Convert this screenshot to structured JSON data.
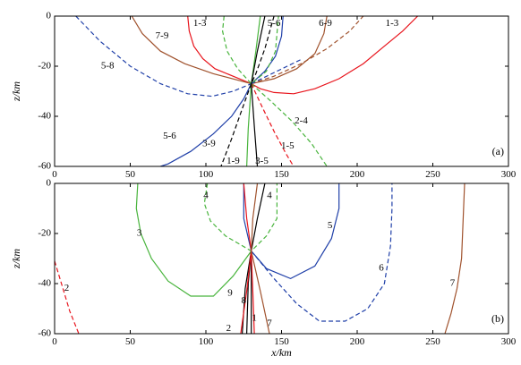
{
  "colors": {
    "black": "#000000",
    "red": "#e8141c",
    "green": "#48b43c",
    "blue": "#1f3fa8",
    "brown": "#a0522d"
  },
  "chart_data": [
    {
      "type": "line",
      "panel": "(a)",
      "xlim": [
        0,
        300
      ],
      "ylim": [
        -60,
        0
      ],
      "xticks": [
        0,
        50,
        100,
        150,
        200,
        250,
        300
      ],
      "yticks": [
        0,
        -20,
        -40,
        -60
      ],
      "xtick_labels": [
        "0",
        "50",
        "100",
        "150",
        "200",
        "250",
        "300"
      ],
      "ytick_labels": [
        "0",
        "-20",
        "-40",
        "-60"
      ],
      "ylabel": "z/km",
      "series": [
        {
          "name": "1-3",
          "color": "red",
          "dash": false,
          "label_at": [
            96,
            -3
          ],
          "points": [
            [
              88,
              0
            ],
            [
              89,
              -6
            ],
            [
              92,
              -12
            ],
            [
              98,
              -17
            ],
            [
              106,
              -21
            ],
            [
              118,
              -24
            ],
            [
              130,
              -27
            ]
          ]
        },
        {
          "name": "1-3",
          "color": "red",
          "dash": false,
          "label_at": [
            223,
            -3
          ],
          "points": [
            [
              130,
              -27
            ],
            [
              136,
              -29
            ],
            [
              145,
              -30.5
            ],
            [
              158,
              -31
            ],
            [
              172,
              -29
            ],
            [
              188,
              -25
            ],
            [
              204,
              -19
            ],
            [
              218,
              -12
            ],
            [
              230,
              -6
            ],
            [
              240,
              0
            ]
          ]
        },
        {
          "name": "5-6",
          "color": "blue",
          "dash": false,
          "label_at": [
            145,
            -3
          ],
          "points": [
            [
              151,
              0
            ],
            [
              150,
              -8
            ],
            [
              146,
              -16
            ],
            [
              139,
              -22
            ],
            [
              130,
              -27
            ]
          ]
        },
        {
          "name": "5-6",
          "color": "blue",
          "dash": false,
          "label_at": [
            76,
            -48
          ],
          "points": [
            [
              130,
              -27
            ],
            [
              125,
              -33
            ],
            [
              117,
              -40
            ],
            [
              105,
              -47
            ],
            [
              90,
              -54
            ],
            [
              75,
              -59
            ],
            [
              70,
              -60
            ]
          ]
        },
        {
          "name": "6-9",
          "color": "brown",
          "dash": false,
          "label_at": [
            179,
            -3
          ],
          "points": [
            [
              180,
              0
            ],
            [
              178,
              -7
            ],
            [
              172,
              -15
            ],
            [
              160,
              -21
            ],
            [
              145,
              -25
            ],
            [
              130,
              -27
            ]
          ]
        },
        {
          "name": "7-9",
          "color": "brown",
          "dash": false,
          "label_at": [
            71,
            -8
          ],
          "points": [
            [
              51,
              0
            ],
            [
              58,
              -7
            ],
            [
              70,
              -14
            ],
            [
              86,
              -19
            ],
            [
              105,
              -23
            ],
            [
              130,
              -27
            ]
          ]
        },
        {
          "name": "7-9",
          "color": "brown",
          "dash": true,
          "label_at": null,
          "points": [
            [
              130,
              -27
            ],
            [
              145,
              -24
            ],
            [
              163,
              -19
            ],
            [
              180,
              -13
            ],
            [
              195,
              -6
            ],
            [
              204,
              0
            ]
          ]
        },
        {
          "name": "5-8",
          "color": "blue",
          "dash": true,
          "label_at": [
            35,
            -20
          ],
          "points": [
            [
              14,
              0
            ],
            [
              30,
              -10
            ],
            [
              50,
              -20
            ],
            [
              70,
              -27
            ],
            [
              88,
              -31
            ],
            [
              104,
              -32
            ],
            [
              118,
              -30
            ],
            [
              130,
              -27
            ]
          ]
        },
        {
          "name": "5-8",
          "color": "blue",
          "dash": true,
          "label_at": null,
          "points": [
            [
              130,
              -27
            ],
            [
              147,
              -22
            ],
            [
              164,
              -17
            ]
          ]
        },
        {
          "name": "1-3",
          "color": "green",
          "dash": true,
          "label_at": null,
          "points": [
            [
              112,
              0
            ],
            [
              111,
              -6
            ],
            [
              114,
              -14
            ],
            [
              121,
              -21
            ],
            [
              130,
              -27
            ],
            [
              140,
              -22
            ],
            [
              146,
              -14
            ],
            [
              148,
              0
            ]
          ]
        },
        {
          "name": "2-4",
          "color": "green",
          "dash": true,
          "label_at": [
            163,
            -42
          ],
          "points": [
            [
              130,
              -27
            ],
            [
              143,
              -34
            ],
            [
              157,
              -42
            ],
            [
              170,
              -51
            ],
            [
              180,
              -60
            ]
          ]
        },
        {
          "name": "3-9",
          "color": "black",
          "dash": true,
          "label_at": [
            102,
            -51
          ],
          "points": [
            [
              145,
              0
            ],
            [
              139,
              -13
            ],
            [
              133,
              -23
            ],
            [
              130,
              -27
            ],
            [
              124,
              -37
            ],
            [
              117,
              -49
            ],
            [
              110,
              -60
            ]
          ]
        },
        {
          "name": "1-5",
          "color": "red",
          "dash": true,
          "label_at": [
            154,
            -52
          ],
          "points": [
            [
              130,
              -27
            ],
            [
              137,
              -36
            ],
            [
              145,
              -46
            ],
            [
              153,
              -55
            ],
            [
              158,
              -60
            ]
          ]
        },
        {
          "name": "1-9",
          "color": "green",
          "dash": false,
          "label_at": [
            118,
            -58
          ],
          "points": [
            [
              136,
              0
            ],
            [
              133,
              -14
            ],
            [
              130,
              -27
            ],
            [
              128,
              -45
            ],
            [
              127,
              -60
            ]
          ]
        },
        {
          "name": "3-5",
          "color": "black",
          "dash": false,
          "label_at": [
            137,
            -58
          ],
          "points": [
            [
              139,
              0
            ],
            [
              134,
              -14
            ],
            [
              130,
              -27
            ],
            [
              132,
              -44
            ],
            [
              134,
              -60
            ]
          ]
        }
      ]
    },
    {
      "type": "line",
      "panel": "(b)",
      "xlim": [
        0,
        300
      ],
      "ylim": [
        -60,
        0
      ],
      "xticks": [
        0,
        50,
        100,
        150,
        200,
        250,
        300
      ],
      "yticks": [
        0,
        -20,
        -40,
        -60
      ],
      "xtick_labels": [
        "0",
        "50",
        "100",
        "150",
        "200",
        "250",
        "300"
      ],
      "ytick_labels": [
        "0",
        "-20",
        "-40",
        "-60"
      ],
      "xlabel": "x/km",
      "ylabel": "z/km",
      "series": [
        {
          "name": "2",
          "color": "red",
          "dash": true,
          "label_at": [
            8,
            -42
          ],
          "points": [
            [
              0,
              -31
            ],
            [
              5,
              -41
            ],
            [
              10,
              -51
            ],
            [
              16,
              -60
            ]
          ]
        },
        {
          "name": "3",
          "color": "green",
          "dash": false,
          "label_at": [
            56,
            -20
          ],
          "points": [
            [
              55,
              0
            ],
            [
              54,
              -10
            ],
            [
              57,
              -20
            ],
            [
              64,
              -30
            ],
            [
              75,
              -39
            ],
            [
              90,
              -45
            ],
            [
              105,
              -45
            ],
            [
              118,
              -37
            ],
            [
              130,
              -27
            ]
          ]
        },
        {
          "name": "4",
          "color": "green",
          "dash": true,
          "label_at": [
            100,
            -5
          ],
          "points": [
            [
              101,
              0
            ],
            [
              99,
              -8
            ],
            [
              103,
              -15
            ],
            [
              113,
              -21
            ],
            [
              130,
              -27
            ],
            [
              140,
              -21
            ],
            [
              147,
              -14
            ],
            [
              147,
              0
            ]
          ]
        },
        {
          "name": "4",
          "color": "black",
          "dash": false,
          "label_at": [
            142,
            -5
          ],
          "points": [
            [
              139,
              0
            ],
            [
              134,
              -14
            ],
            [
              130,
              -27
            ],
            [
              128,
              -40
            ],
            [
              127,
              -60
            ]
          ]
        },
        {
          "name": "5",
          "color": "blue",
          "dash": false,
          "label_at": [
            182,
            -17
          ],
          "points": [
            [
              125,
              0
            ],
            [
              125,
              -14
            ],
            [
              130,
              -27
            ],
            [
              140,
              -34
            ],
            [
              156,
              -38
            ],
            [
              172,
              -33
            ],
            [
              183,
              -22
            ],
            [
              188,
              -10
            ],
            [
              188,
              0
            ]
          ]
        },
        {
          "name": "6",
          "color": "blue",
          "dash": true,
          "label_at": [
            216,
            -34
          ],
          "points": [
            [
              130,
              -27
            ],
            [
              145,
              -38
            ],
            [
              160,
              -48
            ],
            [
              175,
              -55
            ],
            [
              192,
              -55
            ],
            [
              207,
              -50
            ],
            [
              218,
              -40
            ],
            [
              222,
              -25
            ],
            [
              223,
              -10
            ],
            [
              223,
              0
            ]
          ]
        },
        {
          "name": "7",
          "color": "brown",
          "dash": false,
          "label_at": [
            263,
            -40
          ],
          "points": [
            [
              271,
              0
            ],
            [
              270,
              -15
            ],
            [
              269,
              -30
            ],
            [
              266,
              -42
            ],
            [
              262,
              -52
            ],
            [
              258,
              -60
            ]
          ]
        },
        {
          "name": "9",
          "color": "black",
          "dash": false,
          "label_at": [
            116,
            -44
          ],
          "points": [
            [
              130,
              -27
            ],
            [
              126,
              -42
            ],
            [
              124,
              -60
            ]
          ]
        },
        {
          "name": "8",
          "color": "black",
          "dash": false,
          "label_at": [
            125,
            -47
          ],
          "points": [
            [
              130,
              -27
            ],
            [
              130,
              -43
            ],
            [
              130,
              -60
            ]
          ]
        },
        {
          "name": "1",
          "color": "red",
          "dash": false,
          "label_at": [
            132,
            -54
          ],
          "points": [
            [
              130,
              -27
            ],
            [
              131,
              -43
            ],
            [
              132,
              -60
            ]
          ]
        },
        {
          "name": "2",
          "color": "red",
          "dash": false,
          "label_at": [
            115,
            -58
          ],
          "points": [
            [
              125,
              0
            ],
            [
              127,
              -14
            ],
            [
              130,
              -27
            ],
            [
              127,
              -43
            ],
            [
              123,
              -60
            ]
          ]
        },
        {
          "name": "7",
          "color": "brown",
          "dash": false,
          "label_at": [
            142,
            -56
          ],
          "points": [
            [
              134,
              0
            ],
            [
              131,
              -14
            ],
            [
              130,
              -27
            ],
            [
              136,
              -43
            ],
            [
              142,
              -60
            ]
          ]
        }
      ]
    }
  ]
}
